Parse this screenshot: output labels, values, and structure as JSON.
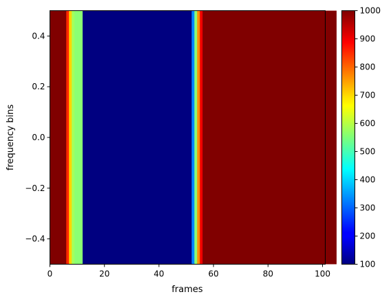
{
  "chart_data": {
    "type": "heatmap",
    "title": "",
    "xlabel": "frames",
    "ylabel": "frequency bins",
    "xlim": [
      0,
      101
    ],
    "ylim": [
      -0.5,
      0.5
    ],
    "x_ticks": [
      0,
      20,
      40,
      60,
      80,
      100
    ],
    "x_tick_labels": [
      "0",
      "20",
      "40",
      "60",
      "80",
      "100"
    ],
    "y_ticks": [
      0.4,
      0.2,
      0.0,
      -0.2,
      -0.4
    ],
    "y_tick_labels": [
      "0.4",
      "0.2",
      "0.0",
      "−0.2",
      "−0.4"
    ],
    "colormap": "jet",
    "colorbar": {
      "vmin": 100,
      "vmax": 1000,
      "ticks": [
        1000,
        900,
        800,
        700,
        600,
        500,
        400,
        300,
        200,
        100
      ],
      "tick_labels": [
        "1000",
        "900",
        "800",
        "700",
        "600",
        "500",
        "400",
        "300",
        "200",
        "100"
      ]
    },
    "values": [
      1000,
      1000,
      1000,
      1000,
      1000,
      1000,
      850,
      700,
      580,
      560,
      560,
      560,
      100,
      100,
      100,
      100,
      100,
      100,
      100,
      100,
      100,
      100,
      100,
      100,
      100,
      100,
      100,
      100,
      100,
      100,
      100,
      100,
      100,
      100,
      100,
      100,
      100,
      100,
      100,
      100,
      100,
      100,
      100,
      100,
      100,
      100,
      100,
      100,
      100,
      100,
      100,
      100,
      330,
      560,
      760,
      900,
      1000,
      1000,
      1000,
      1000,
      1000,
      1000,
      1000,
      1000,
      1000,
      1000,
      1000,
      1000,
      1000,
      1000,
      1000,
      1000,
      1000,
      1000,
      1000,
      1000,
      1000,
      1000,
      1000,
      1000,
      1000,
      1000,
      1000,
      1000,
      1000,
      1000,
      1000,
      1000,
      1000,
      1000,
      1000,
      1000,
      1000,
      1000,
      1000,
      1000,
      1000,
      1000,
      1000,
      1000,
      1000,
      1000,
      1000,
      1000,
      1000
    ]
  }
}
